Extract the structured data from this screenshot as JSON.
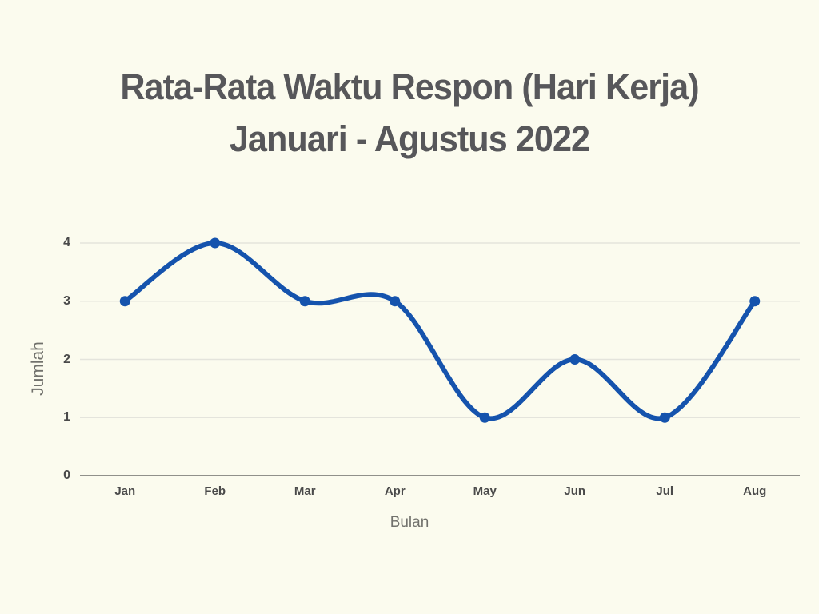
{
  "chart_data": {
    "type": "line",
    "title": "Rata-Rata Waktu Respon (Hari Kerja) Januari - Agustus 2022",
    "title_line1": "Rata-Rata Waktu Respon (Hari Kerja)",
    "title_line2": "Januari - Agustus 2022",
    "xlabel": "Bulan",
    "ylabel": "Jumlah",
    "categories": [
      "Jan",
      "Feb",
      "Mar",
      "Apr",
      "May",
      "Jun",
      "Jul",
      "Aug"
    ],
    "series": [
      {
        "name": "Rata-rata waktu respon (hari kerja)",
        "values": [
          3,
          4,
          3,
          3,
          1,
          2,
          1,
          3
        ]
      }
    ],
    "ylim": [
      0,
      4
    ],
    "yticks": [
      0,
      1,
      2,
      3,
      4
    ],
    "grid": true,
    "legend": "none",
    "smooth": true,
    "colors": {
      "line": "#1553ad",
      "point": "#1553ad",
      "background": "#fbfbee",
      "gridline": "#e4e4dc",
      "zero_axis": "#90908a",
      "title_text": "#57575a",
      "tick_text": "#4a4a4a",
      "axis_label_text": "#71716c"
    }
  }
}
